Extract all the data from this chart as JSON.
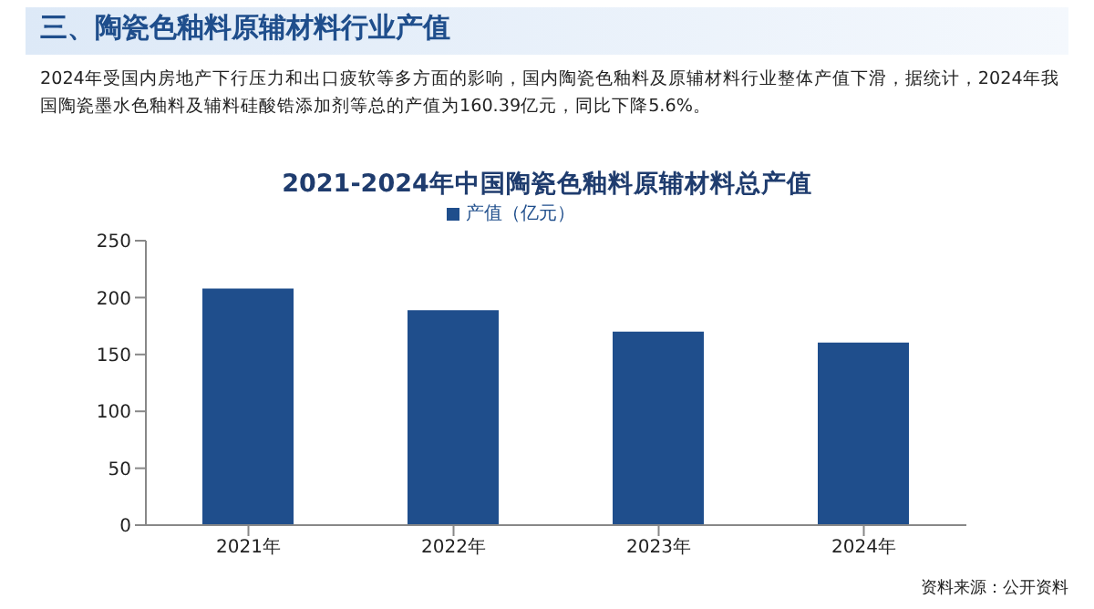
{
  "chart_data": {
    "type": "bar",
    "title": "2021-2024年中国陶瓷色釉料原辅材料总产值",
    "annotations": [
      "三、陶瓷色釉料原辅材料行业产值",
      "2024年受国内房地产下行压力和出口疲软等多方面的影响，国内陶瓷色釉料及原辅材料行业整体产值下滑，据统计，2024年我国陶瓷墨水色釉料及辅料硅酸锆添加剂等总的产值为160.39亿元，同比下降5.6%。",
      "资料来源：公开资料"
    ],
    "categories": [
      "2021年",
      "2022年",
      "2023年",
      "2024年"
    ],
    "series": [
      {
        "name": "产值（亿元）",
        "color": "#1f4e8c",
        "values": [
          208,
          189,
          170,
          160.39
        ]
      }
    ],
    "ylim": [
      0,
      250
    ],
    "yticks": [
      0,
      50,
      100,
      150,
      200,
      250
    ],
    "grid": false,
    "legend": "top"
  }
}
